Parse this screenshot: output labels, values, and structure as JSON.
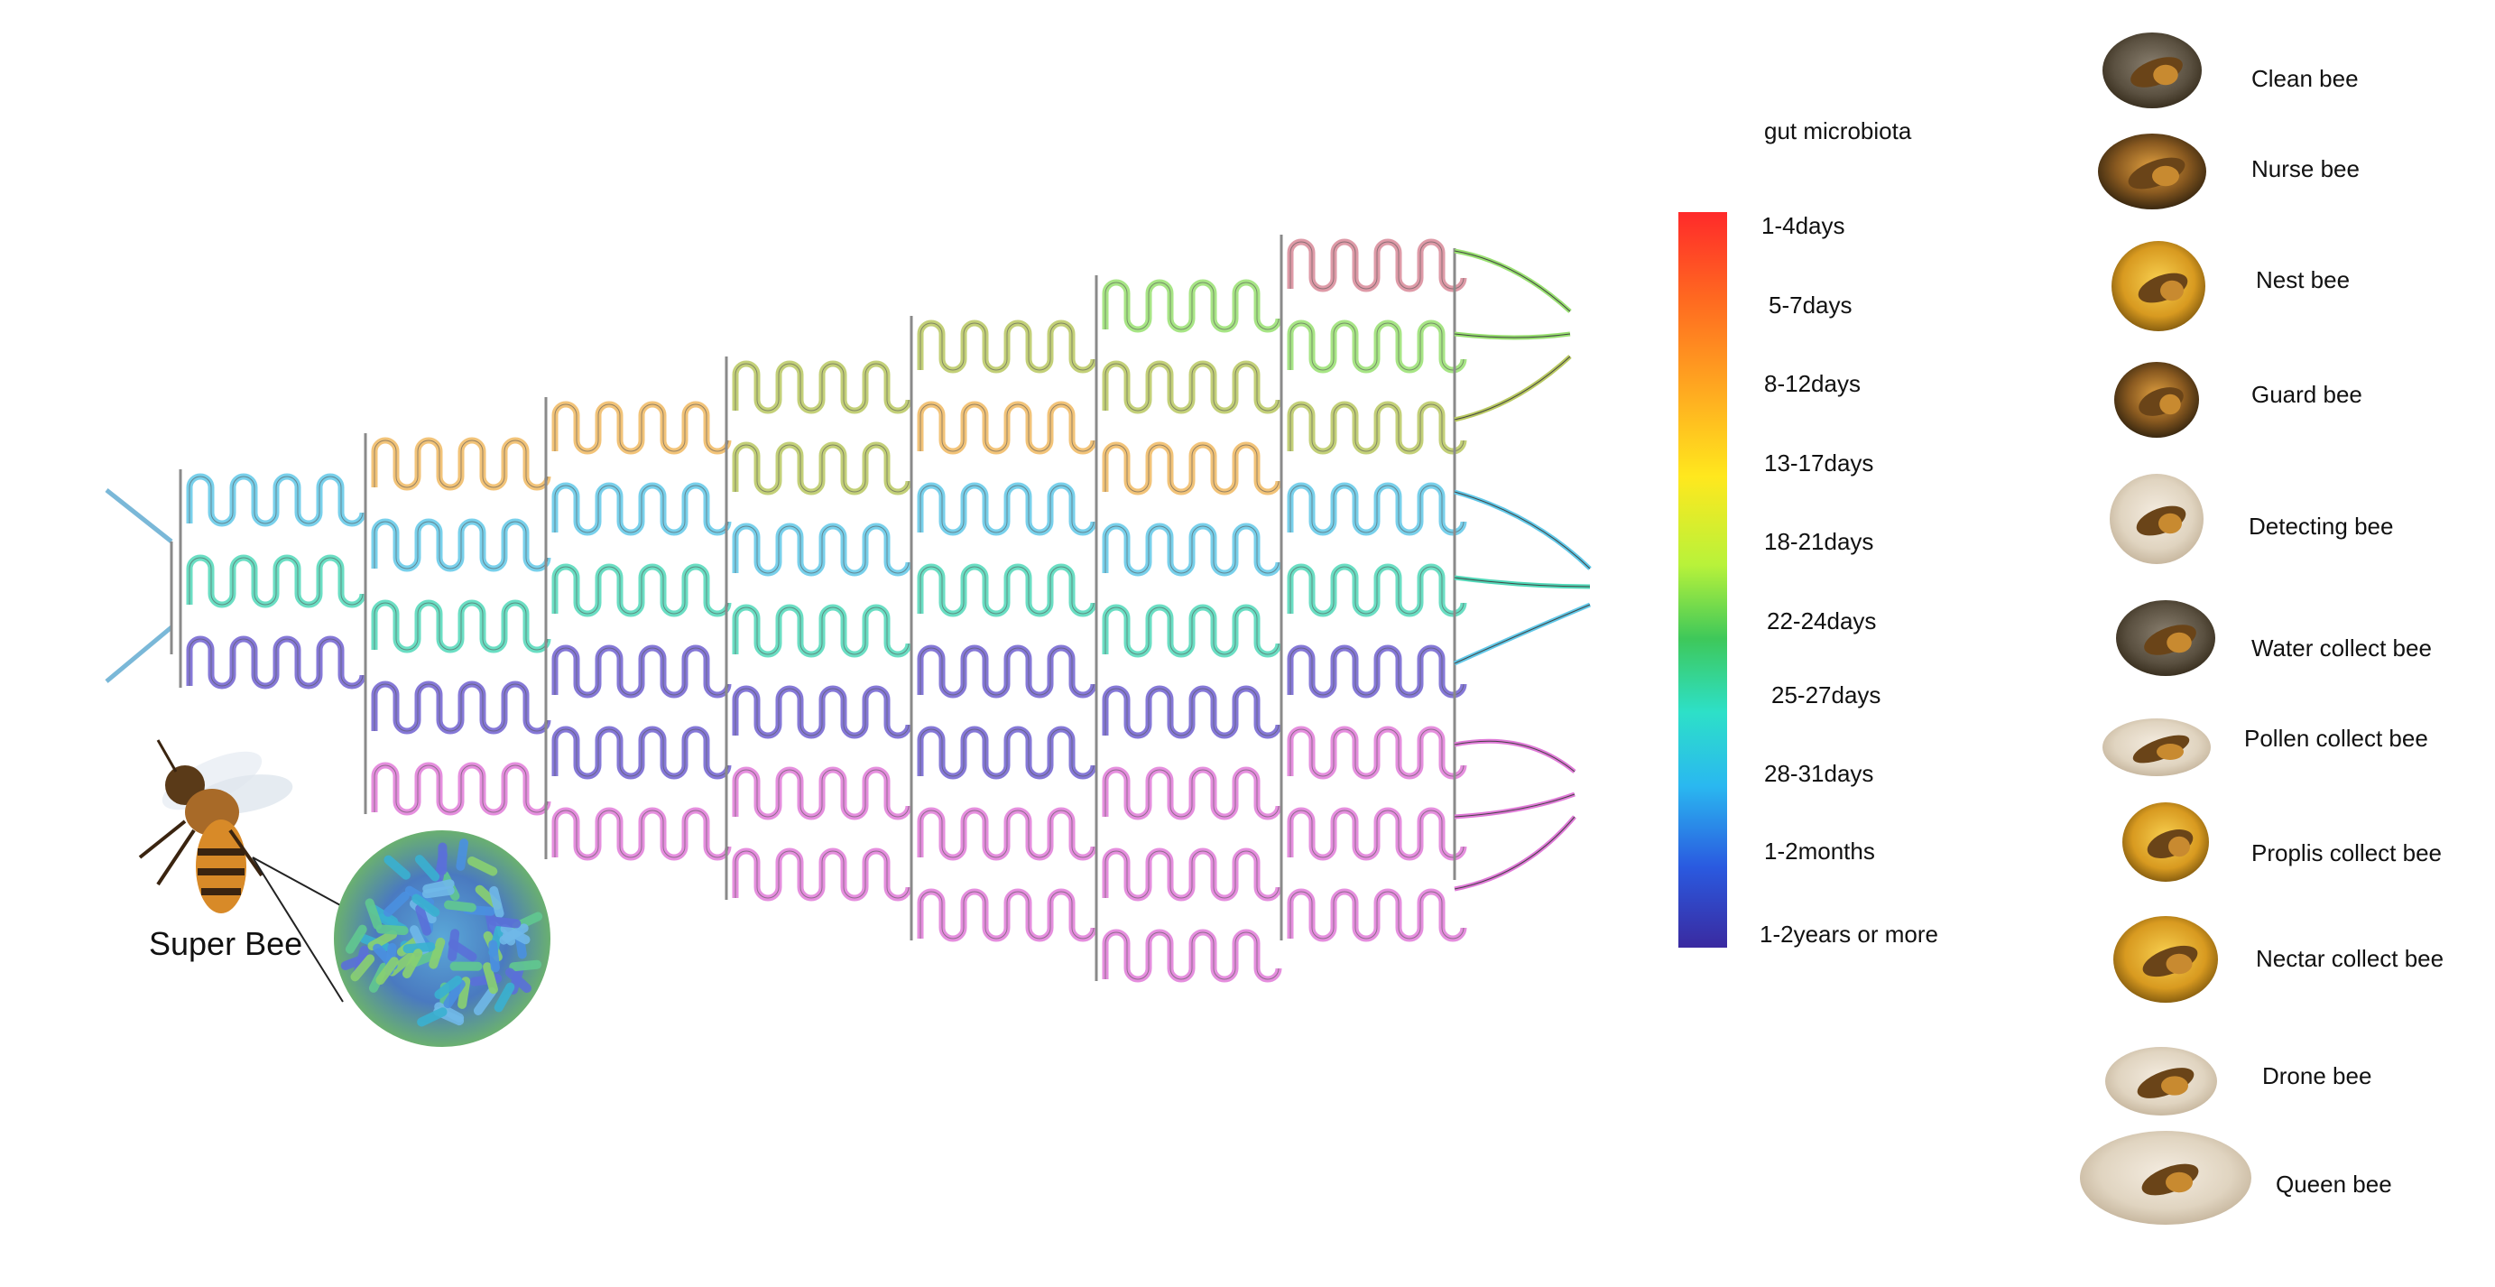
{
  "legend": {
    "title": "gut microbiota",
    "items": [
      {
        "label": "1-4days",
        "color": "#ff2a2a"
      },
      {
        "label": "5-7days",
        "color": "#ff6a20"
      },
      {
        "label": "8-12days",
        "color": "#ffa820"
      },
      {
        "label": "13-17days",
        "color": "#ffe81e"
      },
      {
        "label": "18-21days",
        "color": "#b8f23a"
      },
      {
        "label": "22-24days",
        "color": "#3ec85a"
      },
      {
        "label": "25-27days",
        "color": "#2de0c8"
      },
      {
        "label": "28-31days",
        "color": "#2ab8f0"
      },
      {
        "label": "1-2months",
        "color": "#2a5ae0"
      },
      {
        "label": "1-2years or more",
        "color": "#3a2aa0"
      }
    ]
  },
  "bees": [
    {
      "label": "Clean bee",
      "icon": "clean-bee-photo"
    },
    {
      "label": "Nurse bee",
      "icon": "nurse-bee-photo"
    },
    {
      "label": "Nest bee",
      "icon": "nest-bee-photo"
    },
    {
      "label": "Guard bee",
      "icon": "guard-bee-photo"
    },
    {
      "label": "Detecting bee",
      "icon": "detecting-bee-photo"
    },
    {
      "label": "Water collect bee",
      "icon": "water-collect-bee-photo"
    },
    {
      "label": "Pollen collect bee",
      "icon": "pollen-collect-bee-photo"
    },
    {
      "label": "Proplis collect bee",
      "icon": "proplis-collect-bee-photo"
    },
    {
      "label": "Nectar collect bee",
      "icon": "nectar-collect-bee-photo"
    },
    {
      "label": "Drone bee",
      "icon": "drone-bee-photo"
    },
    {
      "label": "Queen bee",
      "icon": "queen-bee-photo"
    }
  ],
  "super_bee": {
    "label": "Super Bee",
    "icon": "honeybee-icon",
    "detail_icon": "gut-bacteria-icon"
  },
  "colors": {
    "pink": "#e07ad8",
    "purple": "#7060d0",
    "teal": "#50d8b8",
    "cyan": "#60c8e8",
    "orange": "#f0b860",
    "olive": "#b8c860",
    "green": "#98e070",
    "rose": "#d88898"
  }
}
